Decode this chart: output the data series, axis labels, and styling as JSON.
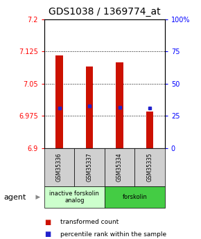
{
  "title": "GDS1038 / 1369774_at",
  "samples": [
    "GSM35336",
    "GSM35337",
    "GSM35334",
    "GSM35335"
  ],
  "bar_values": [
    7.115,
    7.09,
    7.1,
    6.985
  ],
  "percentile_values": [
    6.993,
    6.998,
    6.995,
    6.993
  ],
  "ylim_left": [
    6.9,
    7.2
  ],
  "yticks_left": [
    6.9,
    6.975,
    7.05,
    7.125,
    7.2
  ],
  "ytick_labels_left": [
    "6.9",
    "6.975",
    "7.05",
    "7.125",
    "7.2"
  ],
  "yticks_right": [
    0,
    25,
    50,
    75,
    100
  ],
  "ytick_labels_right": [
    "0",
    "25",
    "50",
    "75",
    "100%"
  ],
  "bar_color": "#cc1100",
  "percentile_color": "#2222cc",
  "groups": [
    {
      "label": "inactive forskolin\nanalog",
      "start": 0,
      "end": 2,
      "color": "#ccffcc"
    },
    {
      "label": "forskolin",
      "start": 2,
      "end": 4,
      "color": "#44cc44"
    }
  ],
  "agent_label": "agent",
  "legend_items": [
    {
      "color": "#cc1100",
      "label": "transformed count"
    },
    {
      "color": "#2222cc",
      "label": "percentile rank within the sample"
    }
  ],
  "bar_width": 0.25,
  "title_fontsize": 10
}
